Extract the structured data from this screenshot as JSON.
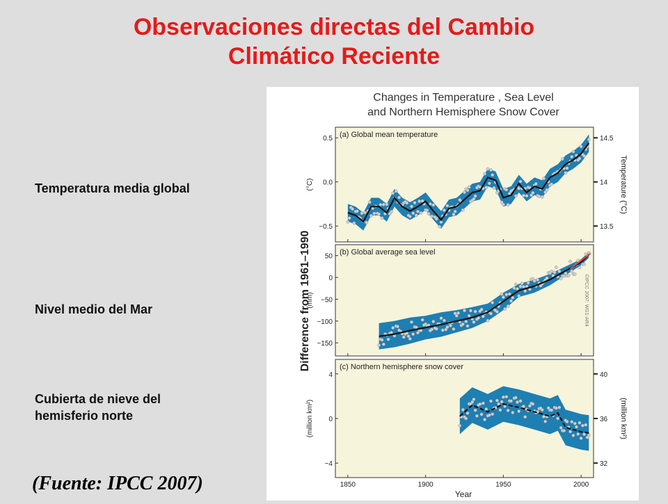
{
  "slide": {
    "title_line1": "Observaciones directas del Cambio",
    "title_line2": "Climático Reciente",
    "labels": [
      "Temperatura media global",
      "Nivel medio del Mar",
      "Cubierta de nieve del",
      "hemisferio norte"
    ],
    "source": "(Fuente: IPCC 2007)"
  },
  "colors": {
    "title": "#e31b1b",
    "panel_bg": "#f7f4dc",
    "band": "#1e7fb3",
    "line": "#111111",
    "points": "#cfcfcf",
    "sat_line": "#e8452c"
  },
  "chart_data": {
    "title_line1": "Changes in Temperature , Sea Level",
    "title_line2": "and Northern Hemisphere Snow Cover",
    "shared_ylabel": "Difference from 1961–1990",
    "xlabel": "Year",
    "x_ticks": [
      1850,
      1900,
      1950,
      2000
    ],
    "xlim": [
      1842,
      2008
    ],
    "watermark": "©IPCC 2007: WG1-AR4",
    "panels": [
      {
        "type": "line",
        "title": "(a) Global mean temperature",
        "ylabel": "(°C)",
        "right_label": "Temperature (°C)",
        "ylim": [
          -0.68,
          0.62
        ],
        "yticks": [
          0.5,
          0.0,
          -0.5
        ],
        "ytick_labels": [
          "0.5",
          "0.0",
          "−0.5"
        ],
        "right_ticks": [
          14.5,
          14.0,
          13.5
        ],
        "right_offset": 14.0,
        "x": [
          1850,
          1855,
          1860,
          1865,
          1870,
          1875,
          1880,
          1885,
          1890,
          1895,
          1900,
          1905,
          1910,
          1915,
          1920,
          1925,
          1930,
          1935,
          1940,
          1945,
          1950,
          1955,
          1960,
          1965,
          1970,
          1975,
          1980,
          1985,
          1990,
          1995,
          2000,
          2005
        ],
        "smooth": [
          -0.35,
          -0.38,
          -0.45,
          -0.28,
          -0.28,
          -0.35,
          -0.18,
          -0.28,
          -0.33,
          -0.28,
          -0.22,
          -0.33,
          -0.43,
          -0.3,
          -0.28,
          -0.2,
          -0.12,
          -0.1,
          0.05,
          0.02,
          -0.18,
          -0.15,
          -0.02,
          -0.12,
          -0.05,
          -0.08,
          0.05,
          0.1,
          0.2,
          0.25,
          0.32,
          0.44
        ],
        "band_half": 0.1
      },
      {
        "type": "line",
        "title": "(b) Global average sea level",
        "ylabel": "(mm)",
        "ylim": [
          -180,
          75
        ],
        "yticks": [
          50,
          0,
          -50,
          -100,
          -150
        ],
        "ytick_labels": [
          "50",
          "0",
          "−50",
          "−100",
          "−150"
        ],
        "x": [
          1870,
          1880,
          1890,
          1900,
          1910,
          1920,
          1930,
          1940,
          1950,
          1960,
          1970,
          1980,
          1990,
          2000,
          2005
        ],
        "smooth": [
          -135,
          -130,
          -122,
          -115,
          -108,
          -100,
          -92,
          -80,
          -55,
          -30,
          -20,
          -5,
          15,
          35,
          52
        ],
        "band_upper": [
          -105,
          -100,
          -92,
          -88,
          -80,
          -75,
          -68,
          -60,
          -35,
          -15,
          -5,
          8,
          25,
          42,
          58
        ],
        "band_lower": [
          -165,
          -160,
          -152,
          -142,
          -136,
          -126,
          -116,
          -100,
          -75,
          -45,
          -35,
          -18,
          5,
          28,
          45
        ],
        "satellite_x": [
          1993,
          2006
        ],
        "satellite_y": [
          20,
          55
        ]
      },
      {
        "type": "line",
        "title": "(c) Northern hemisphere snow cover",
        "ylabel": "(million km²)",
        "right_label": "(million km²)",
        "ylim": [
          -5.3,
          5.3
        ],
        "yticks": [
          4,
          0,
          -4
        ],
        "ytick_labels": [
          "4",
          "0",
          "−4"
        ],
        "right_ticks": [
          40,
          36,
          32
        ],
        "right_offset": 36,
        "x": [
          1922,
          1930,
          1940,
          1950,
          1960,
          1970,
          1980,
          1985,
          1990,
          1995,
          2000,
          2005
        ],
        "smooth": [
          0.2,
          1.2,
          0.6,
          1.3,
          1.0,
          0.6,
          0.2,
          0.5,
          -0.8,
          -1.0,
          -1.2,
          -1.3
        ],
        "band_half": 1.6
      }
    ]
  }
}
